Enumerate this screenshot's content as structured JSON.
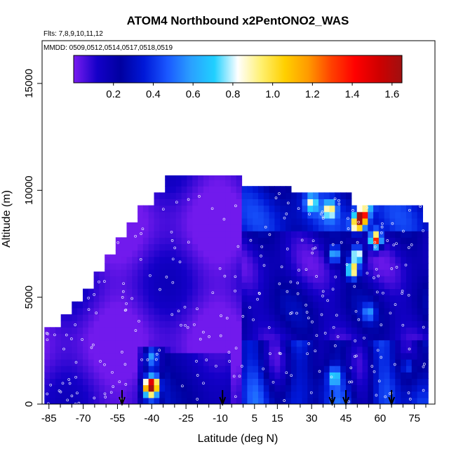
{
  "chart_data": {
    "type": "heatmap",
    "title": "ATOM4 Northbound x2PentONO2_WAS",
    "subtitle_flights": "Flts: 7,8,9,10,11,12",
    "subtitle_dates": "MMDD: 0509,0512,0514,0517,0518,0519",
    "xlabel": "Latitude (deg N)",
    "ylabel": "Altitude (m)",
    "xlim": [
      -88,
      84
    ],
    "ylim": [
      0,
      17000
    ],
    "x_ticks": [
      -85,
      -70,
      -55,
      -40,
      -25,
      -10,
      5,
      15,
      30,
      45,
      60,
      75
    ],
    "x_minor_ticks": [
      -80,
      -75,
      -65,
      -60,
      -50,
      -45,
      -35,
      -30,
      -20,
      -15,
      -5,
      0,
      10,
      20,
      25,
      35,
      40,
      50,
      55,
      65,
      70,
      80
    ],
    "y_ticks": [
      0,
      5000,
      10000,
      15000
    ],
    "colorbar": {
      "min": 0.0,
      "max": 1.65,
      "ticks": [
        0.2,
        0.4,
        0.6,
        0.8,
        1.0,
        1.2,
        1.4,
        1.6
      ],
      "tick_labels": [
        "0.2",
        "0.4",
        "0.6",
        "0.8",
        "1.0",
        "1.2",
        "1.4",
        "1.6"
      ],
      "colors": [
        "#7a1cf0",
        "#1400c8",
        "#0000a0",
        "#0018d8",
        "#1a58ff",
        "#2aa0ff",
        "#20d0ff",
        "#ffffff",
        "#fff070",
        "#ffd000",
        "#ff9a00",
        "#ff4000",
        "#ff0000",
        "#d00000",
        "#a01010"
      ]
    },
    "flight_dates_arrows_latitude": [
      -53,
      -9,
      39,
      45,
      65
    ],
    "ceiling_profile": [
      {
        "lat": -86,
        "alt": 3600
      },
      {
        "lat": -80,
        "alt": 4200
      },
      {
        "lat": -75,
        "alt": 4800
      },
      {
        "lat": -70,
        "alt": 5400
      },
      {
        "lat": -65,
        "alt": 6200
      },
      {
        "lat": -60,
        "alt": 7000
      },
      {
        "lat": -55,
        "alt": 7800
      },
      {
        "lat": -50,
        "alt": 8500
      },
      {
        "lat": -45,
        "alt": 9300
      },
      {
        "lat": -40,
        "alt": 9900
      },
      {
        "lat": -33,
        "alt": 10700
      },
      {
        "lat": -10,
        "alt": 10700
      },
      {
        "lat": 0,
        "alt": 10200
      },
      {
        "lat": 18,
        "alt": 10200
      },
      {
        "lat": 20,
        "alt": 9900
      },
      {
        "lat": 44,
        "alt": 9900
      },
      {
        "lat": 48,
        "alt": 9300
      },
      {
        "lat": 75,
        "alt": 9300
      },
      {
        "lat": 78,
        "alt": 8500
      },
      {
        "lat": 80,
        "alt": 5200
      },
      {
        "lat": 82,
        "alt": 4500
      }
    ],
    "hotspots": [
      {
        "lat": -41,
        "alt": 800,
        "value": 1.3
      },
      {
        "lat": -39,
        "alt": 900,
        "value": 0.9
      },
      {
        "lat": 48,
        "alt": 6300,
        "value": 1.1
      },
      {
        "lat": 50,
        "alt": 7000,
        "value": 1.0
      },
      {
        "lat": 58,
        "alt": 7700,
        "value": 1.5
      },
      {
        "lat": 50,
        "alt": 8400,
        "value": 1.0
      },
      {
        "lat": 52,
        "alt": 8800,
        "value": 1.6
      },
      {
        "lat": 38,
        "alt": 9100,
        "value": 0.8
      },
      {
        "lat": 55,
        "alt": 9400,
        "value": 0.6
      },
      {
        "lat": 30,
        "alt": 9400,
        "value": 0.7
      },
      {
        "lat": 40,
        "alt": 7000,
        "value": 0.7
      },
      {
        "lat": 40,
        "alt": 1300,
        "value": 0.6
      },
      {
        "lat": 72,
        "alt": 1800,
        "value": 0.5
      },
      {
        "lat": -40,
        "alt": 2200,
        "value": 0.5
      },
      {
        "lat": 55,
        "alt": 4300,
        "value": 0.5
      }
    ]
  }
}
